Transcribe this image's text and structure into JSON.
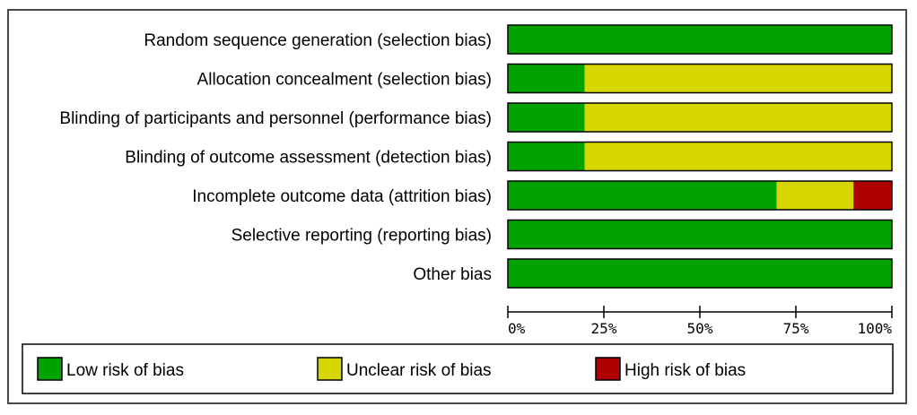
{
  "chart_data": {
    "type": "bar",
    "orientation": "horizontal",
    "stacked": true,
    "percent": true,
    "categories": [
      "Random sequence generation (selection bias)",
      "Allocation concealment (selection bias)",
      "Blinding of participants and personnel (performance bias)",
      "Blinding of outcome assessment (detection bias)",
      "Incomplete outcome data (attrition bias)",
      "Selective reporting (reporting bias)",
      "Other bias"
    ],
    "series": [
      {
        "name": "Low risk of bias",
        "color": "#00a300",
        "values": [
          100,
          20,
          20,
          20,
          70,
          100,
          100
        ]
      },
      {
        "name": "Unclear risk of bias",
        "color": "#d6d600",
        "values": [
          0,
          80,
          80,
          80,
          20,
          0,
          0
        ]
      },
      {
        "name": "High risk of bias",
        "color": "#b00000",
        "values": [
          0,
          0,
          0,
          0,
          10,
          0,
          0
        ]
      }
    ],
    "xlim": [
      0,
      100
    ],
    "xticks": [
      "0%",
      "25%",
      "50%",
      "75%",
      "100%"
    ],
    "grid": false,
    "legend_position": "bottom"
  }
}
